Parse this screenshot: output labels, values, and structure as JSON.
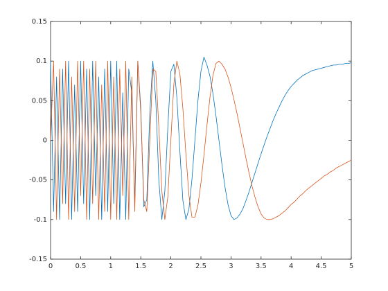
{
  "chart_data": {
    "type": "line",
    "x": [
      0,
      0.05,
      0.1,
      0.15,
      0.2,
      0.25,
      0.3,
      0.35,
      0.4,
      0.45,
      0.5,
      0.55,
      0.6,
      0.65,
      0.7,
      0.75,
      0.8,
      0.85,
      0.9,
      0.95,
      1,
      1.05,
      1.1,
      1.15,
      1.2,
      1.25,
      1.3,
      1.35,
      1.4,
      1.45,
      1.5,
      1.55,
      1.6,
      1.65,
      1.7,
      1.75,
      1.8,
      1.85,
      1.9,
      1.95,
      2,
      2.05,
      2.1,
      2.15,
      2.2,
      2.25,
      2.3,
      2.35,
      2.4,
      2.45,
      2.5,
      2.55,
      2.6,
      2.65,
      2.7,
      2.75,
      2.8,
      2.85,
      2.9,
      2.95,
      3,
      3.05,
      3.1,
      3.15,
      3.2,
      3.25,
      3.3,
      3.35,
      3.4,
      3.45,
      3.5,
      3.55,
      3.6,
      3.65,
      3.7,
      3.75,
      3.8,
      3.85,
      3.9,
      3.95,
      4,
      4.05,
      4.1,
      4.15,
      4.2,
      4.25,
      4.3,
      4.35,
      4.4,
      4.45,
      4.5,
      4.55,
      4.6,
      4.65,
      4.7,
      4.75,
      4.8,
      4.85,
      4.9,
      4.95,
      5
    ],
    "series": [
      {
        "color": "#0072BD",
        "values": [
          0.1,
          -0.09,
          0.08,
          -0.1,
          0.09,
          -0.08,
          0.1,
          -0.1,
          0.07,
          -0.09,
          0.1,
          -0.08,
          0.09,
          -0.1,
          0.1,
          -0.07,
          0.08,
          -0.1,
          0.09,
          -0.09,
          0.1,
          -0.08,
          0.1,
          -0.1,
          0.06,
          -0.1,
          0.09,
          0.06,
          -0.08,
          0.1,
          0.041,
          -0.084,
          -0.075,
          0.035,
          0.1,
          0.05,
          -0.05,
          -0.1,
          -0.064,
          0.017,
          0.087,
          0.096,
          0.054,
          -0.014,
          -0.076,
          -0.1,
          -0.087,
          -0.05,
          0,
          0.05,
          0.087,
          0.105,
          0.095,
          0.081,
          0.059,
          0.031,
          0,
          -0.031,
          -0.059,
          -0.081,
          -0.095,
          -0.1,
          -0.098,
          -0.093,
          -0.086,
          -0.076,
          -0.065,
          -0.053,
          -0.041,
          -0.029,
          -0.017,
          -0.006,
          0.005,
          0.015,
          0.025,
          0.034,
          0.042,
          0.05,
          0.057,
          0.063,
          0.068,
          0.072,
          0.076,
          0.079,
          0.082,
          0.084,
          0.086,
          0.088,
          0.089,
          0.09,
          0.091,
          0.092,
          0.093,
          0.094,
          0.095,
          0.095,
          0.096,
          0.096,
          0.097,
          0.097,
          0.098
        ]
      },
      {
        "color": "#D95319",
        "values": [
          0,
          0.1,
          -0.1,
          0.09,
          -0.08,
          0.1,
          -0.1,
          0.08,
          -0.09,
          0.1,
          -0.07,
          0.1,
          -0.1,
          0.09,
          -0.08,
          0.1,
          -0.1,
          0.07,
          -0.09,
          0.1,
          -0.1,
          0.08,
          -0.1,
          0.09,
          -0.07,
          0.1,
          -0.1,
          0.08,
          -0.09,
          0.1,
          0.035,
          -0.075,
          -0.09,
          0,
          0.09,
          0.087,
          0.017,
          -0.064,
          -0.1,
          -0.071,
          0,
          0.071,
          0.1,
          0.084,
          0.04,
          -0.017,
          -0.069,
          -0.097,
          -0.097,
          -0.082,
          -0.054,
          -0.019,
          0.019,
          0.054,
          0.082,
          0.097,
          0.1,
          0.096,
          0.09,
          0.08,
          0.067,
          0.051,
          0.034,
          0.015,
          -0.004,
          -0.023,
          -0.041,
          -0.058,
          -0.072,
          -0.084,
          -0.093,
          -0.098,
          -0.1,
          -0.1,
          -0.099,
          -0.097,
          -0.095,
          -0.092,
          -0.089,
          -0.085,
          -0.081,
          -0.078,
          -0.074,
          -0.07,
          -0.067,
          -0.063,
          -0.06,
          -0.057,
          -0.054,
          -0.051,
          -0.048,
          -0.045,
          -0.043,
          -0.04,
          -0.038,
          -0.035,
          -0.033,
          -0.031,
          -0.029,
          -0.027,
          -0.025
        ]
      }
    ],
    "xlim": [
      0,
      5
    ],
    "xticks": [
      0,
      0.5,
      1,
      1.5,
      2,
      2.5,
      3,
      3.5,
      4,
      4.5,
      5
    ],
    "ylim": [
      -0.15,
      0.15
    ],
    "yticks": [
      -0.15,
      -0.1,
      -0.05,
      0,
      0.05,
      0.1,
      0.15
    ]
  }
}
